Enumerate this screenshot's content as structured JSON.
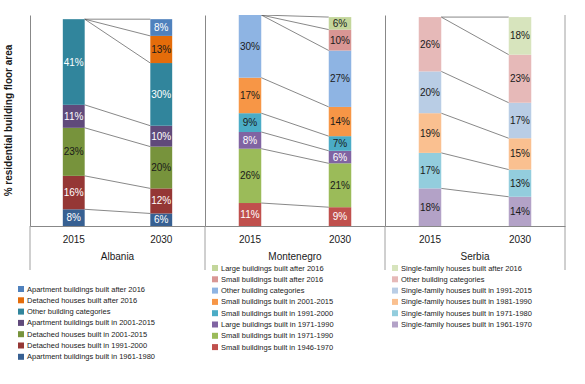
{
  "chart_data": [
    {
      "type": "bar",
      "title": "Albania",
      "ylabel": "% residential building floor area",
      "categories": [
        "2015",
        "2030"
      ],
      "stacked": true,
      "data_labels": true,
      "tick_labels": "x",
      "legend": "bottom",
      "ylim": [
        0,
        101
      ],
      "yticks": [],
      "series": [
        {
          "name": "Apartment buildings built in 1961-1980",
          "color": "#376092",
          "values": [
            8,
            6
          ],
          "value_labels": [
            "8%",
            "6%"
          ]
        },
        {
          "name": "Detached houses built in 1991-2000",
          "color": "#953735",
          "values": [
            16,
            12
          ],
          "value_labels": [
            "16%",
            "12%"
          ]
        },
        {
          "name": "Detached houses built in 2001-2015",
          "color": "#77933C",
          "values": [
            23,
            20
          ],
          "value_labels": [
            "23%",
            "20%"
          ]
        },
        {
          "name": "Apartment buildings built in 2001-2015",
          "color": "#604A7B",
          "values": [
            11,
            10
          ],
          "value_labels": [
            "11%",
            "10%"
          ]
        },
        {
          "name": "Other building categories",
          "color": "#31859C",
          "values": [
            41,
            30
          ],
          "value_labels": [
            "41%",
            "30%"
          ]
        },
        {
          "name": "Detached houses built after 2016",
          "color": "#E46C0A",
          "values": [
            null,
            13
          ],
          "value_labels": [
            null,
            "13%"
          ]
        },
        {
          "name": "Apartment buildings built after 2016",
          "color": "#4F81BD",
          "values": [
            null,
            8
          ],
          "value_labels": [
            null,
            "8%"
          ]
        }
      ]
    },
    {
      "type": "bar",
      "title": "Montenegro",
      "categories": [
        "2015",
        "2030"
      ],
      "stacked": true,
      "data_labels": true,
      "tick_labels": "x",
      "legend": "bottom",
      "ylim": [
        0,
        101
      ],
      "yticks": [],
      "series": [
        {
          "name": "Small buildings built in 1946-1970",
          "color": "#C0504D",
          "values": [
            11,
            9
          ],
          "value_labels": [
            "11%",
            "9%"
          ]
        },
        {
          "name": "Small buildings built in 1971-1990",
          "color": "#9BBB59",
          "values": [
            26,
            21
          ],
          "value_labels": [
            "26%",
            "21%"
          ]
        },
        {
          "name": "Large buildings built in 1971-1990",
          "color": "#8064A2",
          "values": [
            8,
            6
          ],
          "value_labels": [
            "8%",
            "6%"
          ]
        },
        {
          "name": "Small buildings built in 1991-2000",
          "color": "#4BACC6",
          "values": [
            9,
            7
          ],
          "value_labels": [
            "9%",
            "7%"
          ]
        },
        {
          "name": "Small buildings built in 2001-2015",
          "color": "#F79646",
          "values": [
            17,
            14
          ],
          "value_labels": [
            "17%",
            "14%"
          ]
        },
        {
          "name": "Other building categories",
          "color": "#8EB4E3",
          "values": [
            30,
            27
          ],
          "value_labels": [
            "30%",
            "27%"
          ]
        },
        {
          "name": "Small buildings built after 2016",
          "color": "#D99694",
          "values": [
            null,
            10
          ],
          "value_labels": [
            null,
            "10%"
          ]
        },
        {
          "name": "Large buildings built after 2016",
          "color": "#C3D69B",
          "values": [
            null,
            6
          ],
          "value_labels": [
            null,
            "6%"
          ]
        }
      ]
    },
    {
      "type": "bar",
      "title": "Serbia",
      "categories": [
        "2015",
        "2030"
      ],
      "stacked": true,
      "data_labels": true,
      "tick_labels": "x",
      "legend": "bottom",
      "ylim": [
        0,
        101
      ],
      "yticks": [],
      "series": [
        {
          "name": "Single-family houses built in 1961-1970",
          "color": "#B3A2C7",
          "values": [
            18,
            14
          ],
          "value_labels": [
            "18%",
            "14%"
          ]
        },
        {
          "name": "Single-family houses built in 1971-1980",
          "color": "#93CDDD",
          "values": [
            17,
            13
          ],
          "value_labels": [
            "17%",
            "13%"
          ]
        },
        {
          "name": "Single-family houses built in 1981-1990",
          "color": "#FAC090",
          "values": [
            19,
            15
          ],
          "value_labels": [
            "19%",
            "15%"
          ]
        },
        {
          "name": "Single-family houses built in 1991-2015",
          "color": "#B9CDE5",
          "values": [
            20,
            17
          ],
          "value_labels": [
            "20%",
            "17%"
          ]
        },
        {
          "name": "Other building categories",
          "color": "#E6B9B8",
          "values": [
            26,
            23
          ],
          "value_labels": [
            "26%",
            "23%"
          ]
        },
        {
          "name": "Single-family houses built after 2016",
          "color": "#D7E4BD",
          "values": [
            null,
            18
          ],
          "value_labels": [
            null,
            "18%"
          ]
        }
      ]
    }
  ]
}
